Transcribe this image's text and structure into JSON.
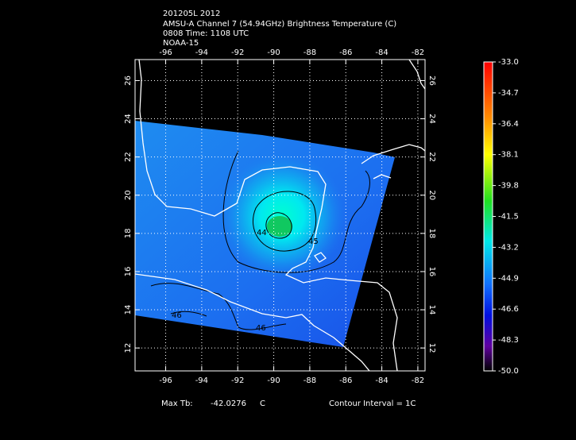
{
  "header": {
    "lines": [
      "201205L 2012",
      "AMSU-A Channel 7 (54.94GHz) Brightness Temperature (C)",
      "0808 Time: 1108 UTC",
      "NOAA-15"
    ]
  },
  "map": {
    "lon_range": [
      -97.7,
      -81.6
    ],
    "lat_range": [
      27.1,
      10.8
    ],
    "lon_ticks": [
      -96,
      -94,
      -92,
      -90,
      -88,
      -86,
      -84,
      -82
    ],
    "lat_ticks": [
      26,
      24,
      22,
      20,
      18,
      16,
      14,
      12
    ],
    "contour_labels": [
      "44",
      "45",
      "46",
      "46"
    ]
  },
  "colorbar": {
    "range": [
      -50,
      -33
    ],
    "ticks": [
      {
        "value": -33,
        "label": "-33.0"
      },
      {
        "value": -34.7,
        "label": "-34.7"
      },
      {
        "value": -36.4,
        "label": "-36.4"
      },
      {
        "value": -38.1,
        "label": "-38.1"
      },
      {
        "value": -39.8,
        "label": "-39.8"
      },
      {
        "value": -41.5,
        "label": "-41.5"
      },
      {
        "value": -43.2,
        "label": "-43.2"
      },
      {
        "value": -44.9,
        "label": "-44.9"
      },
      {
        "value": -46.6,
        "label": "-46.6"
      },
      {
        "value": -48.3,
        "label": "-48.3"
      },
      {
        "value": -50,
        "label": "-50.0"
      }
    ]
  },
  "footer": {
    "max_label": "Max Tb:",
    "max_value": -42.0276,
    "unit": "C",
    "contour_interval": "Contour Interval = 1C"
  }
}
